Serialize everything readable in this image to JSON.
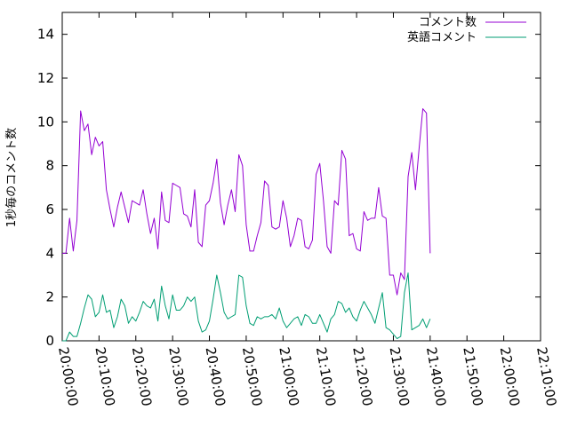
{
  "chart_data": {
    "type": "line",
    "title": "",
    "xlabel": "",
    "ylabel": "1秒毎のコメント数",
    "xlim": [
      "20:00:00",
      "22:10:00"
    ],
    "ylim": [
      0,
      15
    ],
    "xticks": [
      "20:00:00",
      "20:10:00",
      "20:20:00",
      "20:30:00",
      "20:40:00",
      "20:50:00",
      "21:00:00",
      "21:10:00",
      "21:20:00",
      "21:30:00",
      "21:40:00",
      "21:50:00",
      "22:00:00",
      "22:10:00"
    ],
    "yticks": [
      0,
      2,
      4,
      6,
      8,
      10,
      12,
      14
    ],
    "grid": false,
    "legend_position": "top-right",
    "time_step_seconds": 60,
    "series": [
      {
        "name": "コメント数",
        "color": "#9400d3",
        "x_start": "20:00:00",
        "values": [
          4.0,
          4.0,
          5.6,
          4.1,
          5.5,
          10.5,
          9.6,
          9.9,
          8.5,
          9.3,
          8.9,
          9.1,
          6.9,
          6.0,
          5.2,
          6.1,
          6.8,
          6.1,
          5.4,
          6.4,
          6.3,
          6.2,
          6.9,
          5.8,
          4.9,
          5.6,
          4.2,
          6.8,
          5.5,
          5.4,
          7.2,
          7.1,
          7.0,
          5.8,
          5.7,
          5.2,
          6.9,
          4.5,
          4.3,
          6.2,
          6.4,
          7.2,
          8.3,
          6.3,
          5.3,
          6.2,
          6.9,
          5.9,
          8.5,
          8.0,
          5.3,
          4.1,
          4.1,
          4.8,
          5.4,
          7.3,
          7.1,
          5.2,
          5.1,
          5.2,
          6.4,
          5.6,
          4.3,
          4.8,
          5.6,
          5.5,
          4.3,
          4.2,
          4.6,
          7.6,
          8.1,
          6.4,
          4.3,
          4.0,
          6.4,
          6.2,
          8.7,
          8.3,
          4.8,
          4.9,
          4.2,
          4.1,
          5.9,
          5.5,
          5.6,
          5.6,
          7.0,
          5.7,
          5.6,
          3.0,
          3.0,
          2.1,
          3.1,
          2.8,
          7.5,
          8.6,
          6.9,
          8.8,
          10.6,
          10.4,
          4.0
        ]
      },
      {
        "name": "英語コメント",
        "color": "#009e73",
        "x_start": "20:00:00",
        "values": [
          0.0,
          0.0,
          0.4,
          0.2,
          0.2,
          0.8,
          1.5,
          2.1,
          1.9,
          1.1,
          1.3,
          2.1,
          1.3,
          1.4,
          0.6,
          1.1,
          1.9,
          1.6,
          0.8,
          1.1,
          0.9,
          1.3,
          1.8,
          1.6,
          1.5,
          1.9,
          0.9,
          2.5,
          1.6,
          1.0,
          2.1,
          1.4,
          1.4,
          1.6,
          2.0,
          1.8,
          2.0,
          0.9,
          0.4,
          0.5,
          0.9,
          1.9,
          3.0,
          2.2,
          1.3,
          1.0,
          1.1,
          1.2,
          3.0,
          2.9,
          1.6,
          0.8,
          0.7,
          1.1,
          1.0,
          1.1,
          1.1,
          1.2,
          1.0,
          1.5,
          0.9,
          0.6,
          0.8,
          1.0,
          1.1,
          0.7,
          1.2,
          1.1,
          0.8,
          0.8,
          1.2,
          0.8,
          0.4,
          1.0,
          1.2,
          1.8,
          1.7,
          1.3,
          1.5,
          1.1,
          0.9,
          1.4,
          1.8,
          1.5,
          1.2,
          0.8,
          1.5,
          2.2,
          0.6,
          0.5,
          0.3,
          0.1,
          0.2,
          2.2,
          3.1,
          0.5,
          0.6,
          0.7,
          1.0,
          0.6,
          1.0
        ]
      }
    ]
  }
}
